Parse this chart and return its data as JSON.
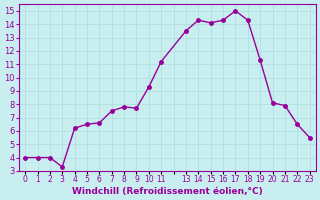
{
  "x": [
    0,
    1,
    2,
    3,
    4,
    5,
    6,
    7,
    8,
    9,
    10,
    11,
    13,
    14,
    15,
    16,
    17,
    18,
    19,
    20,
    21,
    22,
    23
  ],
  "y": [
    4,
    4,
    4,
    3.3,
    6.2,
    6.5,
    6.6,
    7.5,
    7.8,
    7.7,
    9.3,
    11.2,
    13.5,
    14.3,
    14.1,
    14.3,
    15.0,
    14.3,
    11.3,
    8.1,
    7.9,
    6.5,
    5.5
  ],
  "line_color": "#990099",
  "marker_color": "#990099",
  "bg_color": "#c8eef0",
  "grid_color": "#aadddd",
  "xlabel": "Windchill (Refroidissement éolien,°C)",
  "xlabel_color": "#990099",
  "tick_color": "#990099",
  "ylim": [
    3,
    15.5
  ],
  "xlim": [
    -0.5,
    23.5
  ],
  "yticks": [
    3,
    4,
    5,
    6,
    7,
    8,
    9,
    10,
    11,
    12,
    13,
    14,
    15
  ],
  "xticks": [
    0,
    1,
    2,
    3,
    4,
    5,
    6,
    7,
    8,
    9,
    10,
    11,
    12,
    13,
    14,
    15,
    16,
    17,
    18,
    19,
    20,
    21,
    22,
    23
  ],
  "xtick_labels": [
    "0",
    "1",
    "2",
    "3",
    "4",
    "5",
    "6",
    "7",
    "8",
    "9",
    "10",
    "11",
    "",
    "13",
    "14",
    "15",
    "16",
    "17",
    "18",
    "19",
    "20",
    "21",
    "22",
    "23"
  ],
  "figsize": [
    3.2,
    2.0
  ],
  "dpi": 100
}
